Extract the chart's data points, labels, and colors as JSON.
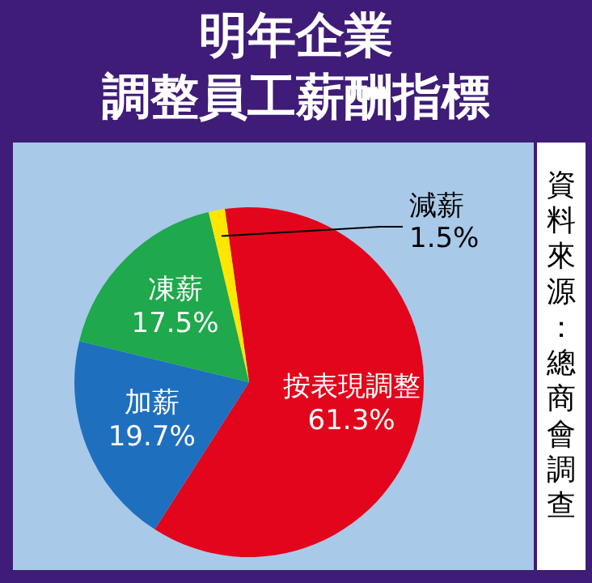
{
  "chart_data": {
    "type": "pie",
    "title": "明年企業調整員工薪酬指標",
    "categories": [
      "按表現調整",
      "加薪",
      "凍薪",
      "減薪"
    ],
    "values": [
      61.3,
      19.7,
      17.5,
      1.5
    ],
    "value_labels": [
      "61.3%",
      "19.7%",
      "17.5%",
      "1.5%"
    ],
    "colors": [
      "#e3051b",
      "#1f6fbf",
      "#1fa84c",
      "#ffe600"
    ],
    "legend": false,
    "annotations": [
      "資料來源：總商會調查"
    ]
  }
}
